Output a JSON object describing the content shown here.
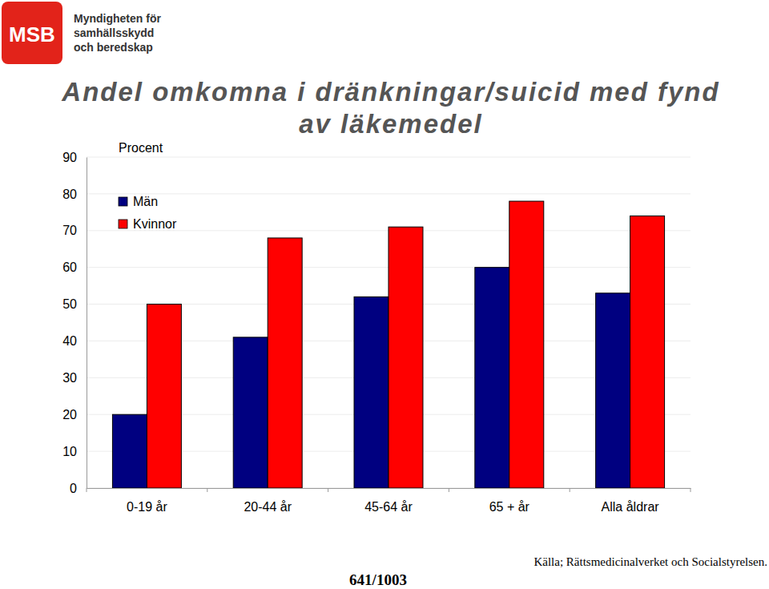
{
  "chart_data": {
    "type": "bar",
    "title": "Andel omkomna i dränkningar/suicid med fynd av läkemedel",
    "y_label": "Procent",
    "categories": [
      "0-19 år",
      "20-44 år",
      "45-64 år",
      "65 + år",
      "Alla åldrar"
    ],
    "series": [
      {
        "name": "Män",
        "color": "#000080",
        "values": [
          20,
          41,
          52,
          60,
          53
        ]
      },
      {
        "name": "Kvinnor",
        "color": "#ff0000",
        "values": [
          50,
          68,
          71,
          78,
          74
        ]
      }
    ],
    "ylim": [
      0,
      90
    ],
    "yticks": [
      0,
      10,
      20,
      30,
      40,
      50,
      60,
      70,
      80,
      90
    ],
    "grid": true,
    "legend": "top-left",
    "annotations": [
      "MSB",
      "Myndigheten för",
      "samhällsskydd",
      "och beredskap",
      "Källa; Rättsmedicinalverket och Socialstyrelsen.",
      "641/1003"
    ]
  }
}
